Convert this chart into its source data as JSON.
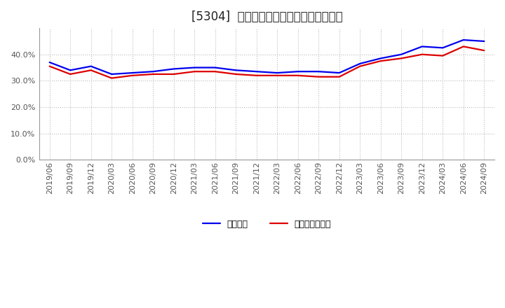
{
  "title": "[5304]  固定比率、固定長期適合率の推移",
  "x_labels": [
    "2019/06",
    "2019/09",
    "2019/12",
    "2020/03",
    "2020/06",
    "2020/09",
    "2020/12",
    "2021/03",
    "2021/06",
    "2021/09",
    "2021/12",
    "2022/03",
    "2022/06",
    "2022/09",
    "2022/12",
    "2023/03",
    "2023/06",
    "2023/09",
    "2023/12",
    "2024/03",
    "2024/06",
    "2024/09"
  ],
  "line_blue": [
    37.0,
    34.0,
    35.5,
    32.5,
    33.0,
    33.5,
    34.5,
    35.0,
    35.0,
    34.0,
    33.5,
    33.0,
    33.5,
    33.5,
    33.0,
    36.5,
    38.5,
    40.0,
    43.0,
    42.5,
    45.5,
    45.0
  ],
  "line_red": [
    35.5,
    32.5,
    34.0,
    31.0,
    32.0,
    32.5,
    32.5,
    33.5,
    33.5,
    32.5,
    32.0,
    32.0,
    32.0,
    31.5,
    31.5,
    35.5,
    37.5,
    38.5,
    40.0,
    39.5,
    43.0,
    41.5
  ],
  "blue_color": "#0000ee",
  "red_color": "#dd0000",
  "bg_color": "#ffffff",
  "grid_color": "#bbbbbb",
  "legend_blue": "固定比率",
  "legend_red": "固定長期適合率",
  "ylim": [
    0,
    50
  ],
  "yticks": [
    0,
    10,
    20,
    30,
    40
  ],
  "title_fontsize": 12,
  "tick_fontsize": 8,
  "line_width": 1.6
}
